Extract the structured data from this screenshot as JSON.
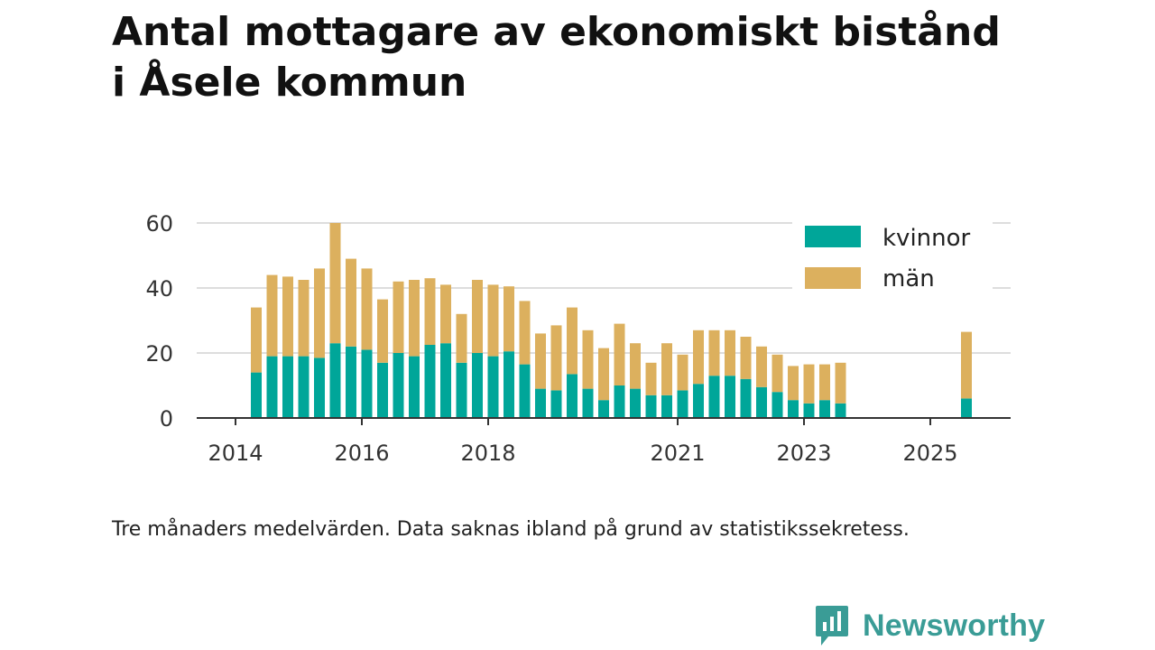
{
  "chart_data": {
    "type": "bar",
    "stacked": true,
    "title_lines": [
      "Antal mottagare av ekonomiskt bistånd",
      "i Åsele kommun"
    ],
    "ylim": [
      0,
      60
    ],
    "yticks": [
      0,
      20,
      40,
      60
    ],
    "xticks": [
      "2014",
      "2016",
      "2018",
      "2021",
      "2023",
      "2025"
    ],
    "legend_position": "top-right",
    "colors": {
      "kvinnor": "#00a699",
      "man": "#dcb05e"
    },
    "series": [
      {
        "name": "kvinnor",
        "values": [
          14,
          19,
          19,
          19,
          18.5,
          23,
          22,
          21,
          17,
          20,
          19,
          22.5,
          23,
          17,
          20,
          19,
          20.5,
          16.5,
          9,
          8.5,
          13.5,
          9,
          5.5,
          10,
          9,
          7,
          7,
          8.5,
          10.5,
          13,
          13,
          12,
          9.5,
          8,
          5.5,
          4.5,
          5.5,
          4.5,
          6
        ]
      },
      {
        "name": "män",
        "values": [
          20,
          25,
          24.5,
          23.5,
          27.5,
          37,
          27,
          25,
          19.5,
          22,
          23.5,
          20.5,
          18,
          15,
          22.5,
          22,
          20,
          19.5,
          17,
          20,
          20.5,
          18,
          16,
          19,
          14,
          10,
          16,
          11,
          16.5,
          14,
          14,
          13,
          12.5,
          11.5,
          10.5,
          12,
          11,
          12.5,
          20.5
        ]
      }
    ],
    "legend": [
      "kvinnor",
      "män"
    ]
  },
  "caption": "Tre månaders medelvärden. Data saknas ibland på grund av statistikssekretess.",
  "brand": {
    "name": "Newsworthy",
    "color": "#3a9c96"
  }
}
